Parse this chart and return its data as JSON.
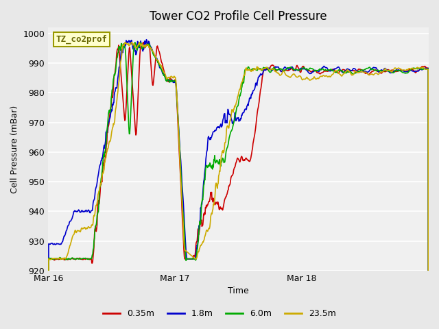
{
  "title": "Tower CO2 Profile Cell Pressure",
  "xlabel": "Time",
  "ylabel": "Cell Pressure (mBar)",
  "ylim": [
    920,
    1002
  ],
  "yticks": [
    920,
    930,
    940,
    950,
    960,
    970,
    980,
    990,
    1000
  ],
  "bg_color": "#e8e8e8",
  "plot_bg_color": "#f0f0f0",
  "legend_label": "TZ_co2prof",
  "series_labels": [
    "0.35m",
    "1.8m",
    "6.0m",
    "23.5m"
  ],
  "series_colors": [
    "#cc0000",
    "#0000cc",
    "#00aa00",
    "#ccaa00"
  ],
  "xtick_labels": [
    "Mar 16",
    "Mar 17",
    "Mar 18"
  ],
  "xtick_positions": [
    0,
    288,
    576
  ],
  "total_points": 865
}
